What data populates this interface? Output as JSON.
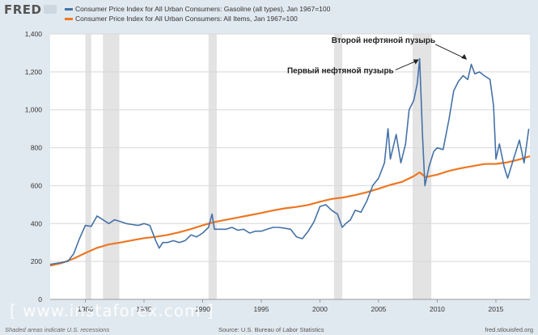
{
  "header": {
    "logo_text": "FRED",
    "logo_icon": "fred-line-chart-icon"
  },
  "watermark": "[ www.instaforex.com ]",
  "footer": {
    "recession_note": "Shaded areas indicate U.S. recessions",
    "source": "Source: U.S. Bureau of Labor Statistics",
    "site": "fred.stlouisfed.org"
  },
  "chart_data": {
    "type": "line",
    "title": "",
    "xlabel": "",
    "ylabel": "",
    "xlim": [
      1977,
      2017.9
    ],
    "ylim": [
      0,
      1400
    ],
    "x_ticks": [
      1980,
      1985,
      1990,
      1995,
      2000,
      2005,
      2010,
      2015
    ],
    "x_tick_labels": [
      "1980",
      "1985",
      "1990",
      "1995",
      "2000",
      "2005",
      "2010",
      "2015"
    ],
    "y_ticks": [
      0,
      200,
      400,
      600,
      800,
      1000,
      1200,
      1400
    ],
    "y_tick_labels": [
      "0",
      "200",
      "400",
      "600",
      "800",
      "1,000",
      "1,200",
      "1,400"
    ],
    "grid": true,
    "legend_position": "top",
    "recessions": [
      [
        1980.0,
        1980.5
      ],
      [
        1981.5,
        1982.9
      ],
      [
        1990.5,
        1991.2
      ],
      [
        2001.2,
        2001.9
      ],
      [
        2007.9,
        2009.5
      ]
    ],
    "series": [
      {
        "name": "Consumer Price Index for All Urban Consumers: Gasoline (all types), Jan 1967=100",
        "color": "#4572a7",
        "x": [
          1977.0,
          1977.5,
          1978.0,
          1978.5,
          1979.0,
          1979.5,
          1980.0,
          1980.5,
          1981.0,
          1981.5,
          1982.0,
          1982.5,
          1983.0,
          1983.5,
          1984.0,
          1984.5,
          1985.0,
          1985.5,
          1986.0,
          1986.3,
          1986.6,
          1987.0,
          1987.5,
          1988.0,
          1988.5,
          1989.0,
          1989.5,
          1990.0,
          1990.5,
          1990.8,
          1991.0,
          1991.5,
          1992.0,
          1992.5,
          1993.0,
          1993.5,
          1994.0,
          1994.5,
          1995.0,
          1995.5,
          1996.0,
          1996.5,
          1997.0,
          1997.5,
          1998.0,
          1998.5,
          1999.0,
          1999.5,
          2000.0,
          2000.5,
          2001.0,
          2001.5,
          2001.9,
          2002.2,
          2002.6,
          2003.0,
          2003.5,
          2004.0,
          2004.5,
          2005.0,
          2005.5,
          2005.8,
          2006.0,
          2006.5,
          2006.9,
          2007.3,
          2007.6,
          2008.0,
          2008.3,
          2008.5,
          2008.75,
          2008.95,
          2009.3,
          2009.7,
          2010.0,
          2010.5,
          2011.0,
          2011.4,
          2011.8,
          2012.2,
          2012.6,
          2012.9,
          2013.2,
          2013.6,
          2014.0,
          2014.5,
          2014.8,
          2015.0,
          2015.3,
          2015.7,
          2016.0,
          2016.4,
          2016.8,
          2017.0,
          2017.4,
          2017.8
        ],
        "values": [
          185,
          190,
          195,
          200,
          240,
          320,
          390,
          385,
          440,
          420,
          400,
          420,
          410,
          400,
          395,
          390,
          400,
          390,
          310,
          270,
          300,
          300,
          310,
          300,
          310,
          340,
          330,
          350,
          380,
          450,
          370,
          370,
          370,
          380,
          365,
          370,
          350,
          360,
          360,
          370,
          380,
          380,
          375,
          370,
          330,
          320,
          360,
          410,
          490,
          500,
          470,
          450,
          380,
          400,
          420,
          470,
          460,
          520,
          600,
          640,
          720,
          900,
          740,
          870,
          720,
          820,
          1000,
          1050,
          1140,
          1270,
          860,
          600,
          700,
          780,
          800,
          790,
          950,
          1100,
          1150,
          1180,
          1160,
          1240,
          1190,
          1200,
          1180,
          1160,
          1020,
          740,
          820,
          700,
          640,
          720,
          800,
          840,
          720,
          900
        ]
      },
      {
        "name": "Consumer Price Index for All Urban Consumers: All Items, Jan 1967=100",
        "color": "#ee7722",
        "x": [
          1977,
          1978,
          1979,
          1980,
          1981,
          1982,
          1983,
          1984,
          1985,
          1986,
          1987,
          1988,
          1989,
          1990,
          1991,
          1992,
          1993,
          1994,
          1995,
          1996,
          1997,
          1998,
          1999,
          2000,
          2001,
          2002,
          2003,
          2004,
          2005,
          2006,
          2007,
          2008,
          2008.5,
          2009,
          2010,
          2011,
          2012,
          2013,
          2014,
          2015,
          2016,
          2017,
          2017.9
        ],
        "values": [
          178,
          192,
          215,
          245,
          272,
          290,
          300,
          312,
          323,
          330,
          340,
          354,
          371,
          391,
          408,
          420,
          432,
          444,
          456,
          469,
          480,
          488,
          498,
          515,
          530,
          538,
          550,
          565,
          584,
          604,
          620,
          650,
          670,
          645,
          658,
          678,
          692,
          703,
          714,
          715,
          723,
          738,
          755
        ]
      }
    ],
    "annotations": [
      {
        "text": "Первый нефтяной пузырь",
        "x": 2008.5,
        "y": 1270
      },
      {
        "text": "Второй нефтяной пузырь",
        "x": 2012.6,
        "y": 1260
      }
    ]
  }
}
